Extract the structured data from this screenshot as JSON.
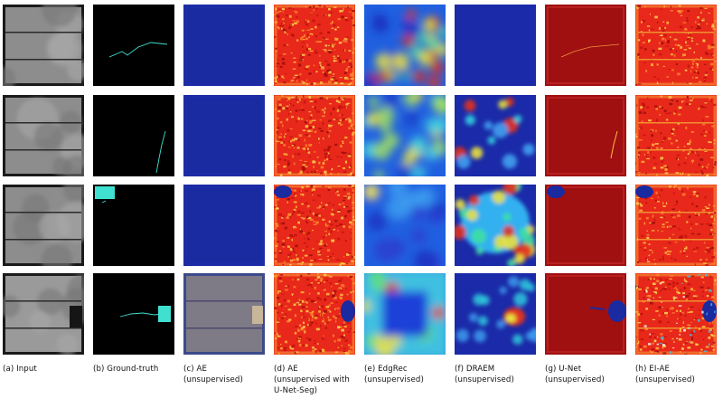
{
  "figure": {
    "columns": [
      {
        "id": "input",
        "caption": [
          "(a) Input"
        ],
        "style": "input"
      },
      {
        "id": "ground-truth",
        "caption": [
          "(b) Ground-truth"
        ],
        "style": "gt"
      },
      {
        "id": "ae",
        "caption": [
          "(c) AE",
          "(unsupervised)"
        ],
        "style": "ae"
      },
      {
        "id": "ae-unet-seg",
        "caption": [
          "(d) AE",
          "(unsupervised with",
          "U-Net-Seg)"
        ],
        "style": "aeseg"
      },
      {
        "id": "edgrec",
        "caption": [
          "(e) EdgRec",
          "(unsupervised)"
        ],
        "style": "edgrec"
      },
      {
        "id": "draem",
        "caption": [
          "(f) DRAEM",
          "(unsupervised)"
        ],
        "style": "draem"
      },
      {
        "id": "unet",
        "caption": [
          "(g) U-Net",
          "(unsupervised)"
        ],
        "style": "unet"
      },
      {
        "id": "ei-ae",
        "caption": [
          "(h) EI-AE",
          "(unsupervised)"
        ],
        "style": "eiae"
      }
    ],
    "rows": 4,
    "colors": {
      "jet_blue": "#1c2ca6",
      "jet_red": "#b01010",
      "ground_truth_defect": "#40e0d0",
      "background": "#ffffff"
    }
  }
}
